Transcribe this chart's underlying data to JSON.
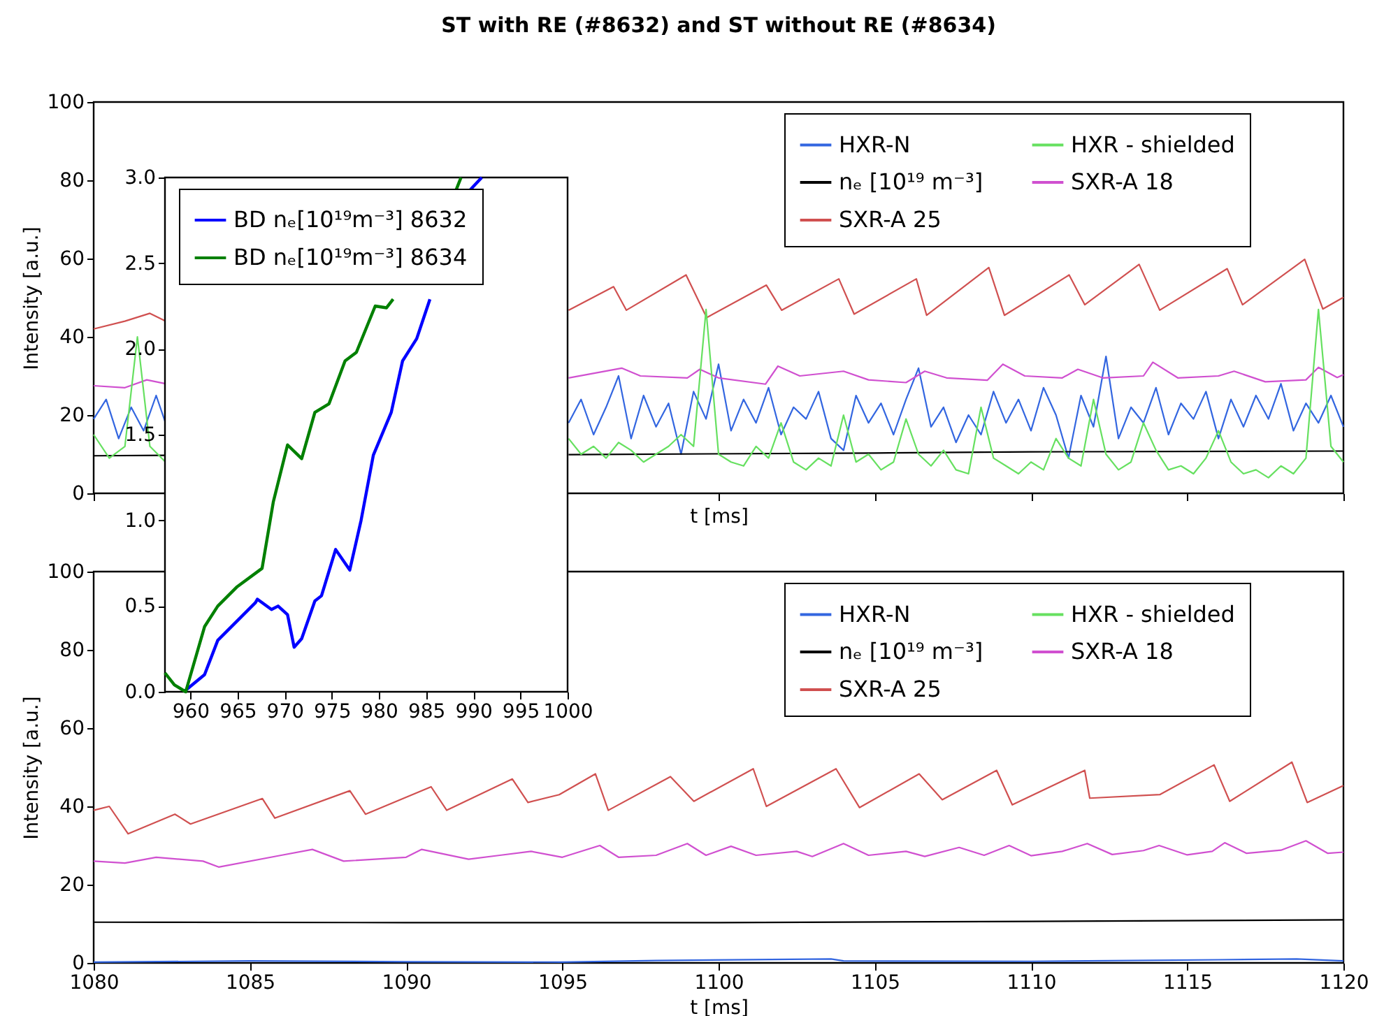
{
  "chart_data": [
    {
      "type": "line",
      "title": "ST with RE (#8632) and ST without RE (#8634)",
      "xlabel": "t [ms]",
      "ylabel": "Intensity [a.u.]",
      "xlim": [
        1080,
        1120
      ],
      "ylim": [
        0,
        100
      ],
      "xticks": [
        1080,
        1085,
        1090,
        1095,
        1100,
        1105,
        1110,
        1115,
        1120
      ],
      "yticks": [
        0,
        20,
        40,
        60,
        80,
        100
      ],
      "tick_labels": "y",
      "legend": "top right",
      "line_style": "solid",
      "series": [
        {
          "name": "HXR-N",
          "color": "#3366e0",
          "x": [
            1080,
            1080.4,
            1080.8,
            1081.2,
            1081.6,
            1082,
            1082.3,
            1088,
            1095.2,
            1095.6,
            1096.0,
            1096.4,
            1096.8,
            1097.2,
            1097.6,
            1098.0,
            1098.4,
            1098.8,
            1099.2,
            1099.6,
            1100.0,
            1100.4,
            1100.8,
            1101.2,
            1101.6,
            1102.0,
            1102.4,
            1102.8,
            1103.2,
            1103.6,
            1104.0,
            1104.4,
            1104.8,
            1105.2,
            1105.6,
            1106.0,
            1106.4,
            1106.8,
            1107.2,
            1107.6,
            1108.0,
            1108.4,
            1108.8,
            1109.2,
            1109.6,
            1110.0,
            1110.4,
            1110.8,
            1111.2,
            1111.6,
            1112.0,
            1112.4,
            1112.8,
            1113.2,
            1113.6,
            1114.0,
            1114.4,
            1114.8,
            1115.2,
            1115.6,
            1116.0,
            1116.4,
            1116.8,
            1117.2,
            1117.6,
            1118.0,
            1118.4,
            1118.8,
            1119.2,
            1119.6,
            1120.0
          ],
          "values": [
            19,
            24,
            14,
            22,
            16,
            25,
            18,
            null,
            18,
            24,
            15,
            22,
            30,
            14,
            25,
            17,
            23,
            10,
            26,
            19,
            33,
            16,
            24,
            18,
            27,
            15,
            22,
            19,
            26,
            14,
            11,
            25,
            18,
            23,
            15,
            24,
            32,
            17,
            22,
            13,
            20,
            15,
            26,
            18,
            24,
            16,
            27,
            20,
            9,
            25,
            17,
            35,
            14,
            22,
            18,
            27,
            15,
            23,
            19,
            26,
            14,
            24,
            17,
            25,
            19,
            28,
            16,
            23,
            18,
            25,
            17
          ]
        },
        {
          "name": "SXR-A 25",
          "color": "#d05050",
          "x": [
            1080,
            1081,
            1081.8,
            1082.3,
            1088,
            1095.2,
            1096.64,
            1097.05,
            1098.96,
            1099.62,
            1101.53,
            1102.02,
            1103.85,
            1104.34,
            1106.33,
            1106.66,
            1108.65,
            1109.15,
            1111.22,
            1111.72,
            1113.46,
            1114.12,
            1116.28,
            1116.77,
            1118.76,
            1119.34,
            1120.0
          ],
          "values": [
            42,
            44,
            46,
            44,
            null,
            46.8,
            52.8,
            46.8,
            55.8,
            44.9,
            53.2,
            46.8,
            54.8,
            45.8,
            54.8,
            45.5,
            57.7,
            45.5,
            55.8,
            48.2,
            58.5,
            46.8,
            57.4,
            48.2,
            59.8,
            47.1,
            50.1
          ]
        },
        {
          "name": "SXR-A 18",
          "color": "#d050d0",
          "x": [
            1080,
            1081,
            1081.7,
            1082.3,
            1088,
            1095.2,
            1096.9,
            1097.5,
            1099.0,
            1099.4,
            1100.0,
            1101.5,
            1101.9,
            1102.6,
            1104.0,
            1104.8,
            1106.0,
            1106.6,
            1107.3,
            1108.6,
            1109.1,
            1109.8,
            1111.0,
            1111.5,
            1112.3,
            1113.6,
            1113.9,
            1114.7,
            1116.0,
            1116.5,
            1117.5,
            1118.8,
            1119.2,
            1119.8,
            1120
          ],
          "values": [
            27.5,
            27,
            29,
            28,
            null,
            29.5,
            32,
            30,
            29.5,
            31.7,
            29.5,
            27.9,
            32.5,
            30,
            31.2,
            29,
            28.3,
            31.2,
            29.5,
            28.9,
            33,
            30,
            29.5,
            31.7,
            29.5,
            30,
            33.5,
            29.5,
            30,
            31.2,
            28.5,
            29,
            32.2,
            29.6,
            30.3
          ]
        },
        {
          "name": "nₑ [10¹⁹ m⁻³]",
          "color": "#000000",
          "x": [
            1080,
            1082.3,
            1088,
            1095.2,
            1105,
            1110,
            1120
          ],
          "values": [
            9.6,
            9.7,
            null,
            9.9,
            10.3,
            10.6,
            10.8
          ]
        },
        {
          "name": "HXR - shielded",
          "color": "#66e060",
          "x": [
            1080,
            1080.5,
            1081,
            1081.4,
            1081.8,
            1082.3,
            1088,
            1095.2,
            1095.6,
            1096.0,
            1096.4,
            1096.8,
            1097.2,
            1097.6,
            1098.0,
            1098.4,
            1098.8,
            1099.2,
            1099.6,
            1100.0,
            1100.4,
            1100.8,
            1101.2,
            1101.6,
            1102.0,
            1102.4,
            1102.8,
            1103.2,
            1103.6,
            1104.0,
            1104.4,
            1104.8,
            1105.2,
            1105.6,
            1106.0,
            1106.4,
            1106.8,
            1107.2,
            1107.6,
            1108.0,
            1108.4,
            1108.8,
            1109.2,
            1109.6,
            1110.0,
            1110.4,
            1110.8,
            1111.2,
            1111.6,
            1112.0,
            1112.4,
            1112.8,
            1113.2,
            1113.6,
            1114.0,
            1114.4,
            1114.8,
            1115.2,
            1115.6,
            1116.0,
            1116.4,
            1116.8,
            1117.2,
            1117.6,
            1118.0,
            1118.4,
            1118.8,
            1119.2,
            1119.6,
            1120.0
          ],
          "values": [
            15,
            9,
            12,
            40,
            12,
            8,
            null,
            14,
            10,
            12,
            9,
            13,
            11,
            8,
            10,
            12,
            15,
            12,
            47,
            10,
            8,
            7,
            12,
            9,
            18,
            8,
            6,
            9,
            7,
            20,
            8,
            10,
            6,
            8,
            19,
            10,
            7,
            11,
            6,
            5,
            22,
            9,
            7,
            5,
            8,
            6,
            14,
            9,
            7,
            24,
            10,
            6,
            8,
            18,
            11,
            6,
            7,
            5,
            9,
            16,
            8,
            5,
            6,
            4,
            7,
            5,
            9,
            47,
            12,
            8
          ]
        }
      ]
    },
    {
      "type": "line",
      "xlim": [
        957.3,
        1000
      ],
      "ylim": [
        0,
        3
      ],
      "xticks": [
        960,
        965,
        970,
        975,
        980,
        985,
        990,
        995,
        1000
      ],
      "yticks": [
        {
          "value": 0,
          "label": "0.0"
        },
        0.5,
        {
          "value": 1,
          "label": "1.0"
        },
        1.5,
        {
          "value": 2,
          "label": "2.0"
        },
        2.5,
        {
          "value": 3,
          "label": "3.0"
        }
      ],
      "legend": "top left",
      "line_style": "solid",
      "series": [
        {
          "name": "BD nₑ[10¹⁹m⁻³] 8632",
          "color": "#0000ff",
          "x": [
            959.3,
            961.5,
            962.9,
            964.9,
            966.9,
            967.1,
            968.6,
            969.3,
            970.3,
            971.0,
            971.8,
            973.2,
            973.9,
            975.4,
            976.9,
            978.1,
            979.4,
            981.3,
            982.5,
            984.0,
            985.4,
            987.5,
            989.7,
            990.9
          ],
          "values": [
            0,
            0.1,
            0.3,
            0.41,
            0.52,
            0.54,
            0.48,
            0.5,
            0.45,
            0.26,
            0.31,
            0.53,
            0.56,
            0.83,
            0.71,
            1.0,
            1.38,
            1.63,
            1.93,
            2.06,
            2.29,
            null,
            2.93,
            3.0
          ]
        },
        {
          "name": "BD nₑ[10¹⁹m⁻³] 8634",
          "color": "#008000",
          "x": [
            957.3,
            958.3,
            959.5,
            961.5,
            962.9,
            964.9,
            967.6,
            968.8,
            970.3,
            971.8,
            973.2,
            974.7,
            976.4,
            977.6,
            979.6,
            980.8,
            981.5,
            985,
            988.2,
            988.7
          ],
          "values": [
            0.11,
            0.04,
            0,
            0.38,
            0.5,
            0.61,
            0.72,
            1.11,
            1.44,
            1.36,
            1.63,
            1.68,
            1.93,
            1.98,
            2.25,
            2.24,
            2.29,
            null,
            2.93,
            3.0
          ]
        }
      ]
    },
    {
      "type": "line",
      "xlabel": "t [ms]",
      "ylabel": "Intensity [a.u.]",
      "xlim": [
        1080,
        1120
      ],
      "ylim": [
        0,
        100
      ],
      "xticks": [
        1080,
        1085,
        1090,
        1095,
        1100,
        1105,
        1110,
        1115,
        1120
      ],
      "yticks": [
        0,
        20,
        40,
        60,
        80,
        100
      ],
      "legend": "top right",
      "line_style": "solid",
      "series": [
        {
          "name": "HXR-N",
          "color": "#3366e0",
          "x": [
            1080,
            1085,
            1090,
            1095,
            1098,
            1103.6,
            1104,
            1110,
            1116,
            1118.5,
            1120
          ],
          "values": [
            0.2,
            0.5,
            0.3,
            0.2,
            0.6,
            1.0,
            0.5,
            0.4,
            0.8,
            1.0,
            0.5
          ]
        },
        {
          "name": "SXR-A 25",
          "color": "#d05050",
          "x": [
            1080,
            1080.5,
            1081.1,
            1082.6,
            1083.1,
            1085.4,
            1085.8,
            1088.2,
            1088.7,
            1090.8,
            1091.3,
            1093.4,
            1093.9,
            1094.9,
            1096.06,
            1096.47,
            1098.46,
            1099.21,
            1101.11,
            1101.53,
            1103.76,
            1104.51,
            1106.42,
            1107.16,
            1108.9,
            1109.4,
            1111.72,
            1111.88,
            1114.12,
            1115.86,
            1116.36,
            1118.35,
            1118.84,
            1120.0
          ],
          "values": [
            39,
            40,
            33,
            38,
            35.5,
            42,
            37,
            44,
            38,
            45,
            39,
            47,
            41,
            43,
            48.3,
            39,
            47.6,
            41.3,
            49.6,
            40,
            49.6,
            39.7,
            48.3,
            41.7,
            49.2,
            40.4,
            49.2,
            42.1,
            43,
            50.6,
            41.3,
            51.3,
            41,
            45.3
          ]
        },
        {
          "name": "SXR-A 18",
          "color": "#d050d0",
          "x": [
            1080,
            1081,
            1082,
            1083.5,
            1084,
            1086,
            1087,
            1088,
            1090,
            1090.5,
            1092,
            1093,
            1094,
            1095,
            1096.2,
            1096.8,
            1098,
            1099,
            1099.6,
            1100.4,
            1101.2,
            1102.5,
            1103,
            1104,
            1104.8,
            1106,
            1106.6,
            1107.7,
            1108.5,
            1109.3,
            1110,
            1111,
            1111.8,
            1112.6,
            1113.6,
            1114.1,
            1115,
            1115.8,
            1116.2,
            1116.9,
            1118,
            1118.8,
            1119.5,
            1120
          ],
          "values": [
            26,
            25.5,
            27,
            26,
            24.5,
            27.5,
            29,
            26,
            27,
            29,
            26.5,
            27.5,
            28.5,
            27,
            30,
            27,
            27.5,
            30.5,
            27.5,
            29.8,
            27.5,
            28.5,
            27.2,
            30.5,
            27.5,
            28.5,
            27.2,
            29.5,
            27.5,
            30,
            27.4,
            28.5,
            30.5,
            27.7,
            28.7,
            30,
            27.6,
            28.5,
            30.7,
            28,
            28.8,
            31.2,
            28,
            28.3
          ]
        },
        {
          "name": "nₑ [10¹⁹ m⁻³]",
          "color": "#000000",
          "x": [
            1080,
            1090,
            1100,
            1110,
            1120
          ],
          "values": [
            10.4,
            10.3,
            10.3,
            10.6,
            11.0
          ]
        },
        {
          "name": "HXR - shielded",
          "color": "#66e060"
        }
      ]
    }
  ]
}
